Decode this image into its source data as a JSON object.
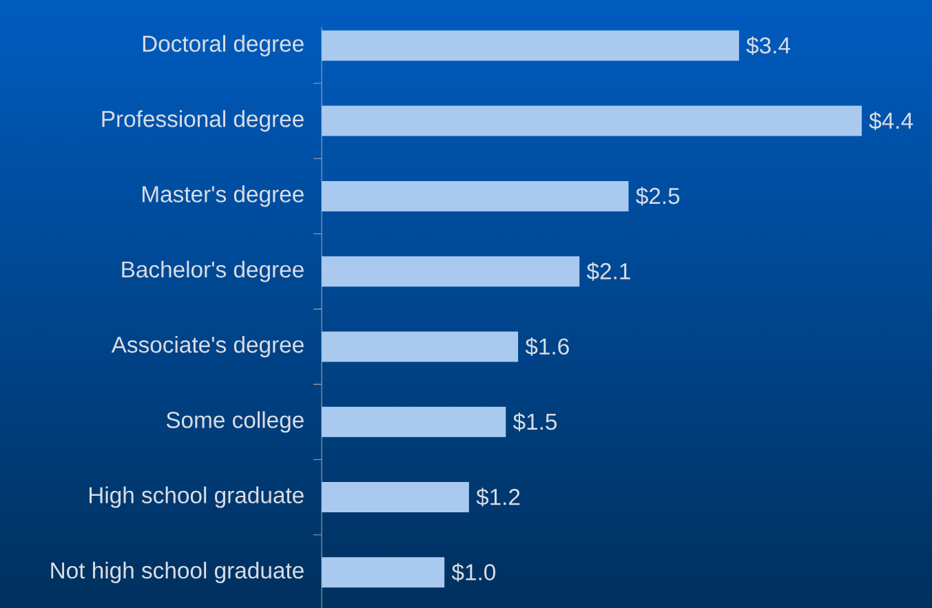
{
  "chart_data": {
    "type": "bar",
    "orientation": "horizontal",
    "categories": [
      "Doctoral degree",
      "Professional degree",
      "Master's degree",
      "Bachelor's degree",
      "Associate's degree",
      "Some  college",
      "High school graduate",
      "Not high school graduate"
    ],
    "values": [
      3.4,
      4.4,
      2.5,
      2.1,
      1.6,
      1.5,
      1.2,
      1.0
    ],
    "value_labels": [
      "$3.4",
      "$4.4",
      "$2.5",
      "$2.1",
      "$1.6",
      "$1.5",
      "$1.2",
      "$1.0"
    ],
    "color": "#a9c9ef"
  }
}
